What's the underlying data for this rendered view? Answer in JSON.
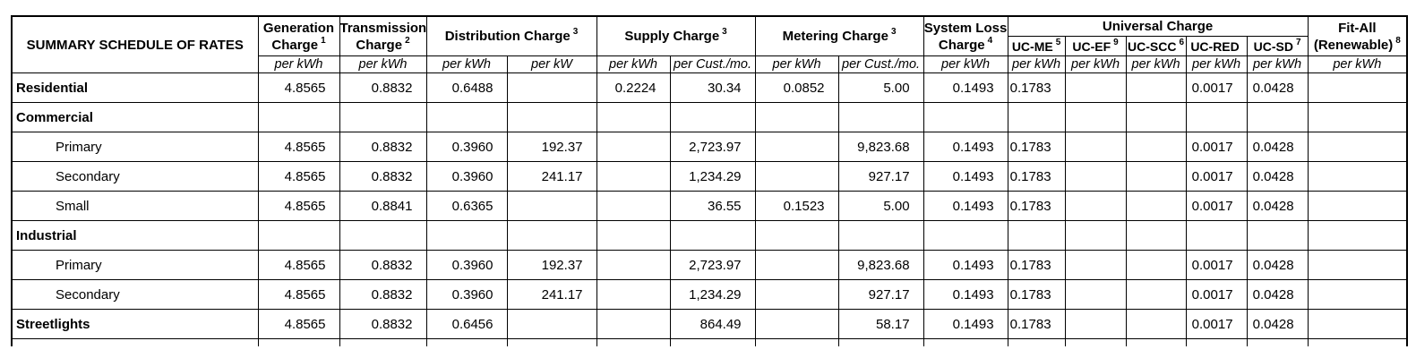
{
  "colors": {
    "grid": "#000000",
    "text": "#000000",
    "background": "#ffffff"
  },
  "table": {
    "title": "SUMMARY SCHEDULE OF RATES",
    "header": {
      "generation": {
        "line1": "Generation",
        "line2": "Charge",
        "sup": "1"
      },
      "transmission": {
        "line1": "Transmission",
        "line2": "Charge",
        "sup": "2"
      },
      "distribution": {
        "label": "Distribution Charge",
        "sup": "3"
      },
      "supply": {
        "label": "Supply Charge",
        "sup": "3"
      },
      "metering": {
        "label": "Metering Charge",
        "sup": "3"
      },
      "system_loss": {
        "line1": "System Loss",
        "line2": "Charge",
        "sup": "4"
      },
      "universal": {
        "label": "Universal Charge"
      },
      "universal_subcols": [
        {
          "label": "UC-ME",
          "sup": "5"
        },
        {
          "label": "UC-EF",
          "sup": "9"
        },
        {
          "label": "UC-SCC",
          "sup": "6"
        },
        {
          "label": "UC-RED",
          "sup": ""
        },
        {
          "label": "UC-SD",
          "sup": "7"
        }
      ],
      "fit_all": {
        "line1": "Fit-All",
        "line2": "(Renewable)",
        "sup": "8"
      },
      "units_row": [
        "per kWh",
        "per kWh",
        "per kWh",
        "per kW",
        "per kWh",
        "per Cust./mo.",
        "per kWh",
        "per Cust./mo.",
        "per kWh",
        "per kWh",
        "per kWh",
        "per kWh",
        "per kWh",
        "per kWh",
        "per kWh"
      ]
    },
    "rows": [
      {
        "label": "Residential",
        "style": "group",
        "values": [
          "4.8565",
          "0.8832",
          "0.6488",
          "",
          "0.2224",
          "30.34",
          "0.0852",
          "5.00",
          "0.1493",
          "0.1783",
          "",
          "",
          "0.0017",
          "0.0428",
          ""
        ]
      },
      {
        "label": "Commercial",
        "style": "group",
        "values": [
          "",
          "",
          "",
          "",
          "",
          "",
          "",
          "",
          "",
          "",
          "",
          "",
          "",
          "",
          ""
        ]
      },
      {
        "label": "Primary",
        "style": "sub",
        "values": [
          "4.8565",
          "0.8832",
          "0.3960",
          "192.37",
          "",
          "2,723.97",
          "",
          "9,823.68",
          "0.1493",
          "0.1783",
          "",
          "",
          "0.0017",
          "0.0428",
          ""
        ]
      },
      {
        "label": "Secondary",
        "style": "sub",
        "values": [
          "4.8565",
          "0.8832",
          "0.3960",
          "241.17",
          "",
          "1,234.29",
          "",
          "927.17",
          "0.1493",
          "0.1783",
          "",
          "",
          "0.0017",
          "0.0428",
          ""
        ]
      },
      {
        "label": "Small",
        "style": "sub",
        "values": [
          "4.8565",
          "0.8841",
          "0.6365",
          "",
          "",
          "36.55",
          "0.1523",
          "5.00",
          "0.1493",
          "0.1783",
          "",
          "",
          "0.0017",
          "0.0428",
          ""
        ]
      },
      {
        "label": "Industrial",
        "style": "group",
        "values": [
          "",
          "",
          "",
          "",
          "",
          "",
          "",
          "",
          "",
          "",
          "",
          "",
          "",
          "",
          ""
        ]
      },
      {
        "label": "Primary",
        "style": "sub",
        "values": [
          "4.8565",
          "0.8832",
          "0.3960",
          "192.37",
          "",
          "2,723.97",
          "",
          "9,823.68",
          "0.1493",
          "0.1783",
          "",
          "",
          "0.0017",
          "0.0428",
          ""
        ]
      },
      {
        "label": "Secondary",
        "style": "sub",
        "values": [
          "4.8565",
          "0.8832",
          "0.3960",
          "241.17",
          "",
          "1,234.29",
          "",
          "927.17",
          "0.1493",
          "0.1783",
          "",
          "",
          "0.0017",
          "0.0428",
          ""
        ]
      },
      {
        "label": "Streetlights",
        "style": "group",
        "values": [
          "4.8565",
          "0.8832",
          "0.6456",
          "",
          "",
          "864.49",
          "",
          "58.17",
          "0.1493",
          "0.1783",
          "",
          "",
          "0.0017",
          "0.0428",
          ""
        ]
      }
    ]
  }
}
